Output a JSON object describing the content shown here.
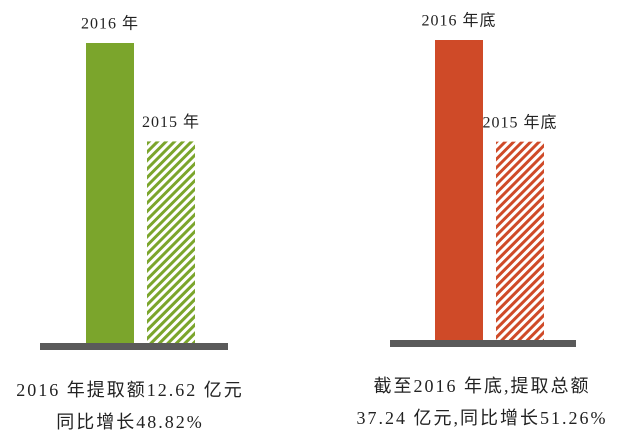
{
  "chart_data": [
    {
      "type": "bar",
      "categories": [
        "2016 年",
        "2015 年"
      ],
      "values": [
        12.62,
        8.48
      ],
      "color": "#7ba52c",
      "caption": [
        "2016 年提取额12.62 亿元",
        "同比增长48.82%"
      ]
    },
    {
      "type": "bar",
      "categories": [
        "2016 年底",
        "2015 年底"
      ],
      "values": [
        37.24,
        24.62
      ],
      "color": "#cf4a28",
      "caption": [
        "截至2016 年底,提取总额",
        "37.24 亿元,同比增长51.26%"
      ]
    }
  ]
}
